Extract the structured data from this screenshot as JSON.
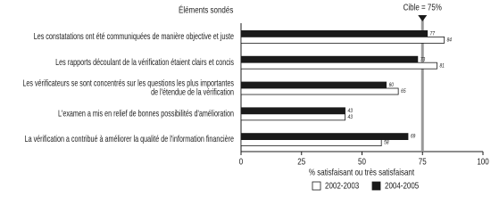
{
  "chart_data": {
    "type": "hbar",
    "title": "Éléments sondés",
    "categories": [
      "Les constatations ont été communiquées de  manière objective et juste",
      "Les rapports découlant de la vérification étaient clairs et concis",
      [
        "Les vérificateurs se sont concentrés sur les questions les plus importantes",
        "de l'étendue de la vérification"
      ],
      "L'examen a mis en relief de bonnes possibilités d'amélioration",
      "La vérification a contribué à améliorer la qualité de l'information financière"
    ],
    "series": [
      {
        "name": "2002-2003",
        "color": "#ffffff",
        "values": [
          84,
          81,
          65,
          43,
          58
        ]
      },
      {
        "name": "2004-2005",
        "color": "#1a1a1a",
        "values": [
          77,
          73,
          60,
          43,
          69
        ]
      }
    ],
    "xlim": [
      0,
      100
    ],
    "xticks": [
      0,
      25,
      50,
      75,
      100
    ],
    "xlabel": "% satisfaisant ou très satisfaisant",
    "target": {
      "value": 75,
      "label": "Cible = 75%"
    },
    "grid": false,
    "legend": "bottom"
  }
}
